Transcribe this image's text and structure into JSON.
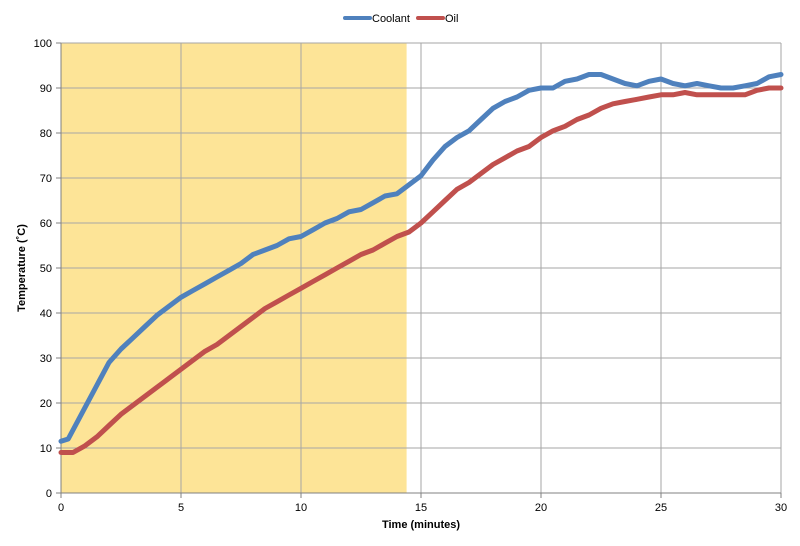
{
  "chart_data": {
    "type": "line",
    "title": "",
    "xlabel": "Time (minutes)",
    "ylabel": "Temperature (˚C)",
    "xlim": [
      0,
      30
    ],
    "ylim": [
      0,
      100
    ],
    "x_ticks": [
      "0",
      "5",
      "10",
      "15",
      "20",
      "25",
      "30"
    ],
    "y_ticks": [
      "0",
      "10",
      "20",
      "30",
      "40",
      "50",
      "60",
      "70",
      "80",
      "90",
      "100"
    ],
    "grid": true,
    "legend_position": "top-center",
    "highlight": {
      "x_start": 0,
      "x_end": 14.4,
      "color": "#fde497"
    },
    "series": [
      {
        "name": "Coolant",
        "color": "#4f81bd",
        "points": [
          [
            0,
            11.5
          ],
          [
            0.3,
            12
          ],
          [
            0.6,
            15
          ],
          [
            1,
            19
          ],
          [
            1.5,
            24
          ],
          [
            2,
            29
          ],
          [
            2.5,
            32
          ],
          [
            3,
            34.5
          ],
          [
            3.5,
            37
          ],
          [
            4,
            39.5
          ],
          [
            4.5,
            41.5
          ],
          [
            5,
            43.5
          ],
          [
            5.5,
            45
          ],
          [
            6,
            46.5
          ],
          [
            6.5,
            48
          ],
          [
            7,
            49.5
          ],
          [
            7.5,
            51
          ],
          [
            8,
            53
          ],
          [
            8.5,
            54
          ],
          [
            9,
            55
          ],
          [
            9.5,
            56.5
          ],
          [
            10,
            57
          ],
          [
            10.5,
            58.5
          ],
          [
            11,
            60
          ],
          [
            11.5,
            61
          ],
          [
            12,
            62.5
          ],
          [
            12.5,
            63
          ],
          [
            13,
            64.5
          ],
          [
            13.5,
            66
          ],
          [
            14,
            66.5
          ],
          [
            14.5,
            68.5
          ],
          [
            15,
            70.5
          ],
          [
            15.5,
            74
          ],
          [
            16,
            77
          ],
          [
            16.5,
            79
          ],
          [
            17,
            80.5
          ],
          [
            17.5,
            83
          ],
          [
            18,
            85.5
          ],
          [
            18.5,
            87
          ],
          [
            19,
            88
          ],
          [
            19.5,
            89.5
          ],
          [
            20,
            90
          ],
          [
            20.5,
            90
          ],
          [
            21,
            91.5
          ],
          [
            21.5,
            92
          ],
          [
            22,
            93
          ],
          [
            22.5,
            93
          ],
          [
            23,
            92
          ],
          [
            23.5,
            91
          ],
          [
            24,
            90.5
          ],
          [
            24.5,
            91.5
          ],
          [
            25,
            92
          ],
          [
            25.5,
            91
          ],
          [
            26,
            90.5
          ],
          [
            26.5,
            91
          ],
          [
            27,
            90.5
          ],
          [
            27.5,
            90
          ],
          [
            28,
            90
          ],
          [
            28.5,
            90.5
          ],
          [
            29,
            91
          ],
          [
            29.5,
            92.5
          ],
          [
            30,
            93
          ]
        ]
      },
      {
        "name": "Oil",
        "color": "#c0504d",
        "points": [
          [
            0,
            9
          ],
          [
            0.5,
            9
          ],
          [
            1,
            10.5
          ],
          [
            1.5,
            12.5
          ],
          [
            2,
            15
          ],
          [
            2.5,
            17.5
          ],
          [
            3,
            19.5
          ],
          [
            3.5,
            21.5
          ],
          [
            4,
            23.5
          ],
          [
            4.5,
            25.5
          ],
          [
            5,
            27.5
          ],
          [
            5.5,
            29.5
          ],
          [
            6,
            31.5
          ],
          [
            6.5,
            33
          ],
          [
            7,
            35
          ],
          [
            7.5,
            37
          ],
          [
            8,
            39
          ],
          [
            8.5,
            41
          ],
          [
            9,
            42.5
          ],
          [
            9.5,
            44
          ],
          [
            10,
            45.5
          ],
          [
            10.5,
            47
          ],
          [
            11,
            48.5
          ],
          [
            11.5,
            50
          ],
          [
            12,
            51.5
          ],
          [
            12.5,
            53
          ],
          [
            13,
            54
          ],
          [
            13.5,
            55.5
          ],
          [
            14,
            57
          ],
          [
            14.5,
            58
          ],
          [
            15,
            60
          ],
          [
            15.5,
            62.5
          ],
          [
            16,
            65
          ],
          [
            16.5,
            67.5
          ],
          [
            17,
            69
          ],
          [
            17.5,
            71
          ],
          [
            18,
            73
          ],
          [
            18.5,
            74.5
          ],
          [
            19,
            76
          ],
          [
            19.5,
            77
          ],
          [
            20,
            79
          ],
          [
            20.5,
            80.5
          ],
          [
            21,
            81.5
          ],
          [
            21.5,
            83
          ],
          [
            22,
            84
          ],
          [
            22.5,
            85.5
          ],
          [
            23,
            86.5
          ],
          [
            23.5,
            87
          ],
          [
            24,
            87.5
          ],
          [
            24.5,
            88
          ],
          [
            25,
            88.5
          ],
          [
            25.5,
            88.5
          ],
          [
            26,
            89
          ],
          [
            26.5,
            88.5
          ],
          [
            27,
            88.5
          ],
          [
            27.5,
            88.5
          ],
          [
            28,
            88.5
          ],
          [
            28.5,
            88.5
          ],
          [
            29,
            89.5
          ],
          [
            29.5,
            90
          ],
          [
            30,
            90
          ]
        ]
      }
    ]
  }
}
